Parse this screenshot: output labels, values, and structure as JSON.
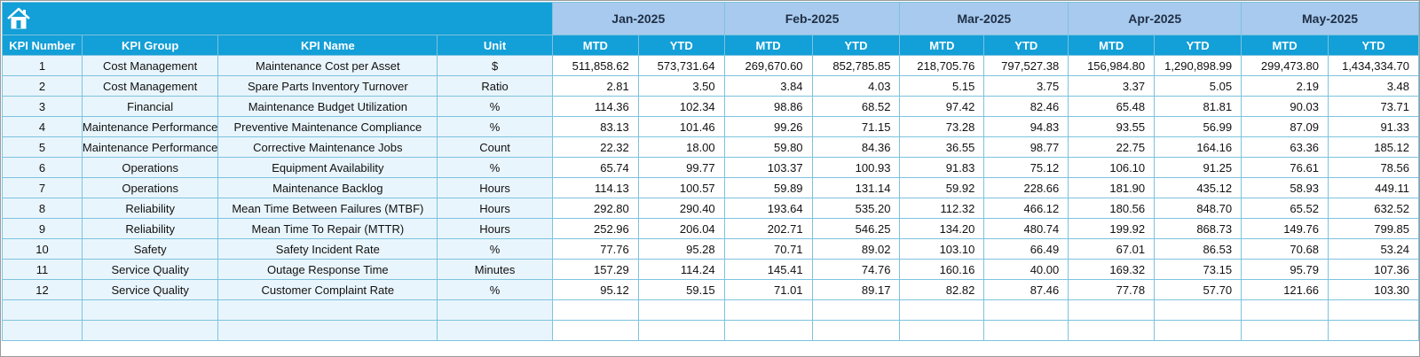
{
  "table": {
    "columns": [
      "KPI Number",
      "KPI Group",
      "KPI Name",
      "Unit"
    ],
    "months": [
      "Jan-2025",
      "Feb-2025",
      "Mar-2025",
      "Apr-2025",
      "May-2025"
    ],
    "periods": [
      "MTD",
      "YTD"
    ],
    "rows": [
      [
        "1",
        "Cost Management",
        "Maintenance Cost per Asset",
        "$",
        "511,858.62",
        "573,731.64",
        "269,670.60",
        "852,785.85",
        "218,705.76",
        "797,527.38",
        "156,984.80",
        "1,290,898.99",
        "299,473.80",
        "1,434,334.70"
      ],
      [
        "2",
        "Cost Management",
        "Spare Parts Inventory Turnover",
        "Ratio",
        "2.81",
        "3.50",
        "3.84",
        "4.03",
        "5.15",
        "3.75",
        "3.37",
        "5.05",
        "2.19",
        "3.48"
      ],
      [
        "3",
        "Financial",
        "Maintenance Budget Utilization",
        "%",
        "114.36",
        "102.34",
        "98.86",
        "68.52",
        "97.42",
        "82.46",
        "65.48",
        "81.81",
        "90.03",
        "73.71"
      ],
      [
        "4",
        "Maintenance Performance",
        "Preventive Maintenance Compliance",
        "%",
        "83.13",
        "101.46",
        "99.26",
        "71.15",
        "73.28",
        "94.83",
        "93.55",
        "56.99",
        "87.09",
        "91.33"
      ],
      [
        "5",
        "Maintenance Performance",
        "Corrective Maintenance Jobs",
        "Count",
        "22.32",
        "18.00",
        "59.80",
        "84.36",
        "36.55",
        "98.77",
        "22.75",
        "164.16",
        "63.36",
        "185.12"
      ],
      [
        "6",
        "Operations",
        "Equipment Availability",
        "%",
        "65.74",
        "99.77",
        "103.37",
        "100.93",
        "91.83",
        "75.12",
        "106.10",
        "91.25",
        "76.61",
        "78.56"
      ],
      [
        "7",
        "Operations",
        "Maintenance Backlog",
        "Hours",
        "114.13",
        "100.57",
        "59.89",
        "131.14",
        "59.92",
        "228.66",
        "181.90",
        "435.12",
        "58.93",
        "449.11"
      ],
      [
        "8",
        "Reliability",
        "Mean Time Between Failures (MTBF)",
        "Hours",
        "292.80",
        "290.40",
        "193.64",
        "535.20",
        "112.32",
        "466.12",
        "180.56",
        "848.70",
        "65.52",
        "632.52"
      ],
      [
        "9",
        "Reliability",
        "Mean Time To Repair (MTTR)",
        "Hours",
        "252.96",
        "206.04",
        "202.71",
        "546.25",
        "134.20",
        "480.74",
        "199.92",
        "868.73",
        "149.76",
        "799.85"
      ],
      [
        "10",
        "Safety",
        "Safety Incident Rate",
        "%",
        "77.76",
        "95.28",
        "70.71",
        "89.02",
        "103.10",
        "66.49",
        "67.01",
        "86.53",
        "70.68",
        "53.24"
      ],
      [
        "11",
        "Service Quality",
        "Outage Response Time",
        "Minutes",
        "157.29",
        "114.24",
        "145.41",
        "74.76",
        "160.16",
        "40.00",
        "169.32",
        "73.15",
        "95.79",
        "107.36"
      ],
      [
        "12",
        "Service Quality",
        "Customer Complaint Rate",
        "%",
        "95.12",
        "59.15",
        "71.01",
        "89.17",
        "82.82",
        "87.46",
        "77.78",
        "57.70",
        "121.66",
        "103.30"
      ]
    ]
  }
}
